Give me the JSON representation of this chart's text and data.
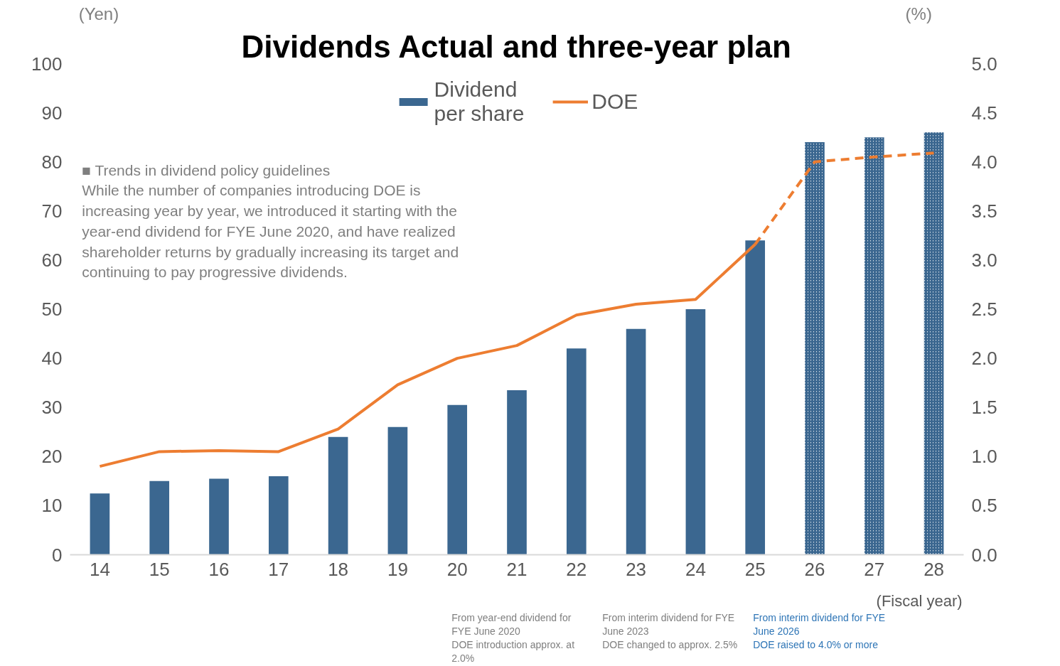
{
  "chart_data": {
    "type": "bar",
    "title": "Dividends Actual and three-year plan",
    "ylabel": "(Yen)",
    "y2label": "(%)",
    "xlabel": "(Fiscal year)",
    "categories": [
      "14",
      "15",
      "16",
      "17",
      "18",
      "19",
      "20",
      "21",
      "22",
      "23",
      "24",
      "25",
      "26",
      "27",
      "28"
    ],
    "series": [
      {
        "name": "Dividend\nper share",
        "color": "#3b6790",
        "values": [
          12.5,
          15,
          15.5,
          16,
          24,
          26,
          30.5,
          33.5,
          42,
          46,
          50,
          64,
          null,
          null,
          null
        ]
      },
      {
        "color": "#3b6790",
        "values": [
          null,
          null,
          null,
          null,
          null,
          null,
          null,
          null,
          null,
          null,
          null,
          null,
          84,
          85,
          86
        ]
      },
      {
        "name": "DOE",
        "type": "line",
        "axis": "y2",
        "color": "#ed7d31",
        "line_style": "solid",
        "values": [
          0.9,
          1.05,
          1.06,
          1.05,
          1.28,
          1.73,
          2.0,
          2.13,
          2.44,
          2.55,
          2.6,
          3.16,
          null,
          null,
          null
        ]
      },
      {
        "type": "line",
        "axis": "y2",
        "color": "#ed7d31",
        "line_style": "dashed",
        "values": [
          null,
          null,
          null,
          null,
          null,
          null,
          null,
          null,
          null,
          null,
          null,
          3.16,
          4.0,
          4.05,
          4.09
        ]
      }
    ],
    "ylim": [
      0,
      100
    ],
    "yticks": [
      0,
      10,
      20,
      30,
      40,
      50,
      60,
      70,
      80,
      90,
      100
    ],
    "y2lim": [
      0,
      5
    ],
    "y2ticks": [
      {
        "value": 0,
        "label": "0.0"
      },
      {
        "value": 0.5,
        "label": "0.5"
      },
      {
        "value": 1,
        "label": "1.0"
      },
      {
        "value": 1.5,
        "label": "1.5"
      },
      {
        "value": 2,
        "label": "2.0"
      },
      {
        "value": 2.5,
        "label": "2.5"
      },
      {
        "value": 3,
        "label": "3.0"
      },
      {
        "value": 3.5,
        "label": "3.5"
      },
      {
        "value": 4,
        "label": "4.0"
      },
      {
        "value": 4.5,
        "label": "4.5"
      },
      {
        "value": 5,
        "label": "5.0"
      }
    ],
    "grid": false,
    "legend": "top",
    "marker": "none",
    "annotations": [
      "■  Trends in dividend policy guidelines\n     While the number of companies introducing DOE is\n     increasing year by year, we introduced it starting with the\n     year-end dividend for FYE June 2020, and have realized\n     shareholder returns by gradually increasing its target and\n     continuing to pay progressive dividends.",
      "From year-end dividend for\nFYE June 2020\nDOE introduction approx. at\n2.0%",
      "From interim dividend for FYE\nJune 2023\nDOE changed to approx. 2.5%",
      "From interim dividend for FYE\nJune 2026\nDOE raised to 4.0% or more"
    ]
  }
}
